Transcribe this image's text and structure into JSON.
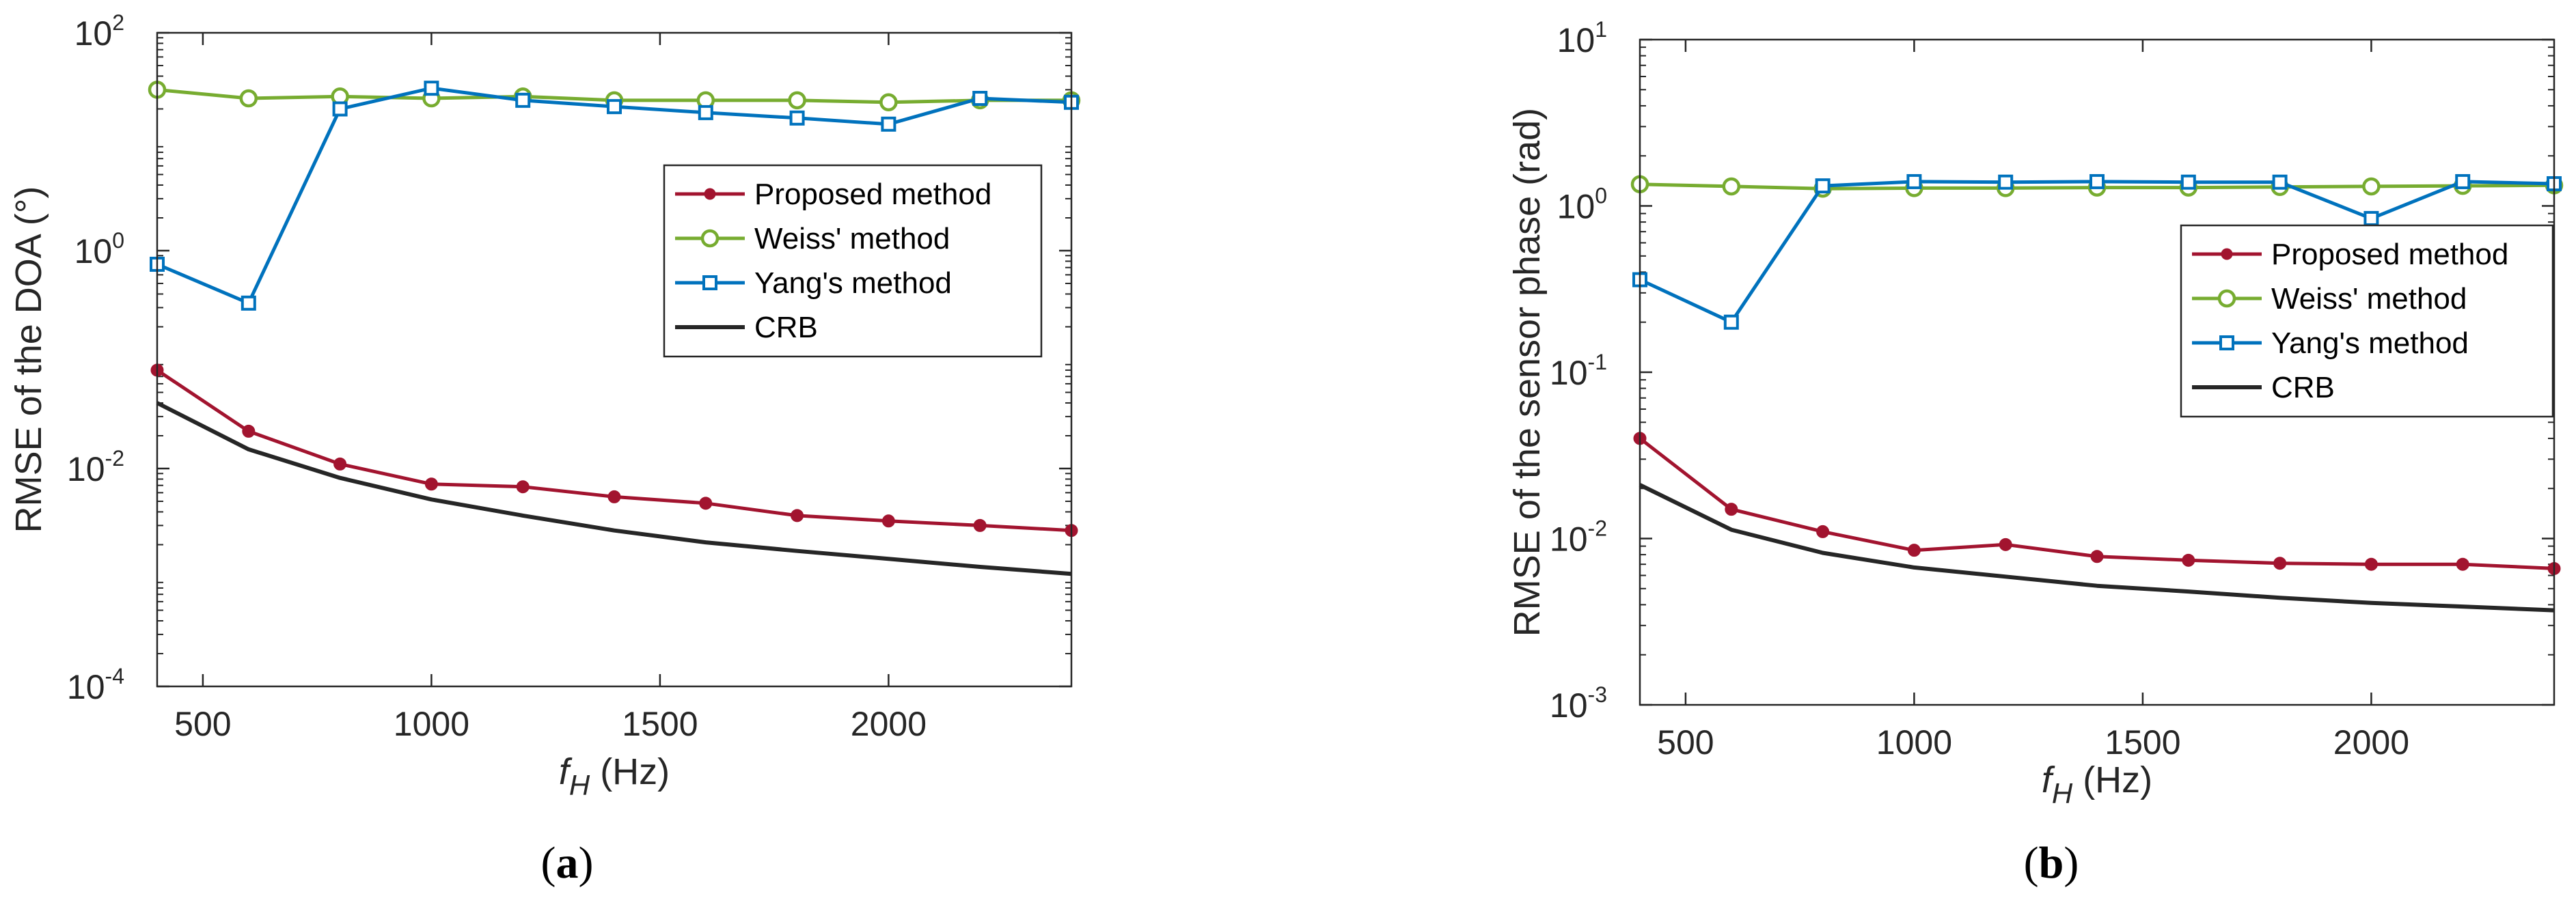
{
  "chart_data": [
    {
      "type": "line",
      "panel_label": "a",
      "caption": {
        "open": "(",
        "letter": "a",
        "close": ")"
      },
      "xlabel": {
        "main": "f",
        "sub": "H",
        "rest": " (Hz)"
      },
      "ylabel": "RMSE of the DOA (°)",
      "y_scale": "log",
      "xlim": [
        400,
        2400
      ],
      "ylim": [
        0.0001,
        100
      ],
      "x_ticks": [
        500,
        1000,
        1500,
        2000
      ],
      "y_ticks": [
        {
          "value": 0.0001,
          "base": "10",
          "exp": "-4"
        },
        {
          "value": 0.01,
          "base": "10",
          "exp": "-2"
        },
        {
          "value": 1,
          "base": "10",
          "exp": "0"
        },
        {
          "value": 100,
          "base": "10",
          "exp": "2"
        }
      ],
      "grid": false,
      "legend_position": "upper-right",
      "x": [
        400,
        600,
        800,
        1000,
        1200,
        1400,
        1600,
        1800,
        2000,
        2200,
        2400
      ],
      "series": [
        {
          "name": "Proposed method",
          "color": "#a2142f",
          "marker": "dot",
          "values": [
            0.08,
            0.022,
            0.011,
            0.0072,
            0.0068,
            0.0055,
            0.0048,
            0.0037,
            0.0033,
            0.003,
            0.0027
          ]
        },
        {
          "name": "Weiss' method",
          "color": "#77ac30",
          "marker": "circle",
          "values": [
            30,
            25,
            26,
            25,
            26,
            24,
            24,
            24,
            23,
            24,
            24
          ]
        },
        {
          "name": "Yang's method",
          "color": "#0072bd",
          "marker": "square",
          "values": [
            0.75,
            0.33,
            20,
            31,
            24,
            21,
            18.5,
            16.5,
            14.5,
            25,
            23
          ]
        },
        {
          "name": "CRB",
          "color": "#262626",
          "marker": "none",
          "values": [
            0.04,
            0.015,
            0.0082,
            0.0052,
            0.0037,
            0.0027,
            0.0021,
            0.00175,
            0.00148,
            0.00125,
            0.00108
          ]
        }
      ]
    },
    {
      "type": "line",
      "panel_label": "b",
      "caption": {
        "open": "(",
        "letter": "b",
        "close": ")"
      },
      "xlabel": {
        "main": "f",
        "sub": "H",
        "rest": " (Hz)"
      },
      "ylabel": "RMSE of the sensor phase (rad)",
      "y_scale": "log",
      "xlim": [
        400,
        2400
      ],
      "ylim": [
        0.001,
        10
      ],
      "x_ticks": [
        500,
        1000,
        1500,
        2000
      ],
      "y_ticks": [
        {
          "value": 0.001,
          "base": "10",
          "exp": "-3"
        },
        {
          "value": 0.01,
          "base": "10",
          "exp": "-2"
        },
        {
          "value": 0.1,
          "base": "10",
          "exp": "-1"
        },
        {
          "value": 1,
          "base": "10",
          "exp": "0"
        },
        {
          "value": 10,
          "base": "10",
          "exp": "1"
        }
      ],
      "grid": false,
      "legend_position": "right",
      "x": [
        400,
        600,
        800,
        1000,
        1200,
        1400,
        1600,
        1800,
        2000,
        2200,
        2400
      ],
      "series": [
        {
          "name": "Proposed method",
          "color": "#a2142f",
          "marker": "dot",
          "values": [
            0.04,
            0.015,
            0.011,
            0.0085,
            0.0092,
            0.0078,
            0.0074,
            0.0071,
            0.007,
            0.007,
            0.0066
          ]
        },
        {
          "name": "Weiss' method",
          "color": "#77ac30",
          "marker": "circle",
          "values": [
            1.35,
            1.31,
            1.27,
            1.28,
            1.28,
            1.29,
            1.29,
            1.3,
            1.31,
            1.32,
            1.33
          ]
        },
        {
          "name": "Yang's method",
          "color": "#0072bd",
          "marker": "square",
          "values": [
            0.36,
            0.2,
            1.32,
            1.4,
            1.39,
            1.4,
            1.39,
            1.39,
            0.84,
            1.4,
            1.36
          ]
        },
        {
          "name": "CRB",
          "color": "#262626",
          "marker": "none",
          "values": [
            0.021,
            0.0113,
            0.0082,
            0.0067,
            0.0059,
            0.0052,
            0.0048,
            0.0044,
            0.0041,
            0.0039,
            0.0037
          ]
        }
      ]
    }
  ]
}
